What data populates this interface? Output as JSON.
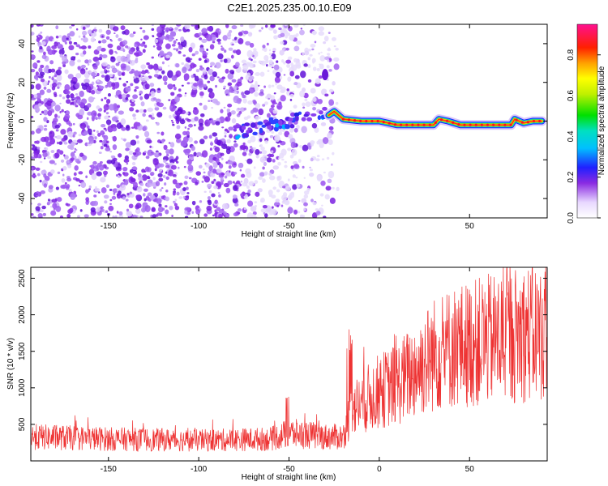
{
  "title": "C2E1.2025.235.00.10.E09",
  "chart_data": [
    {
      "type": "heatmap",
      "xlabel": "Height of straight line (km)",
      "ylabel": "Frequency (Hz)",
      "xlim": [
        -193,
        93
      ],
      "ylim": [
        -50,
        50
      ],
      "xticks": [
        -150,
        -100,
        -50,
        0,
        50
      ],
      "yticks": [
        -40,
        -20,
        0,
        20,
        40
      ],
      "grid": false,
      "colorbar": {
        "label": "Normalized spectral amplitude",
        "ticks": [
          0.0,
          0.2,
          0.4,
          0.6,
          0.8
        ],
        "range": [
          0,
          0.95
        ]
      },
      "signal_track": {
        "description_units": "frequency (Hz) vs height (km)",
        "x": [
          -28,
          -25,
          -20,
          -10,
          0,
          10,
          20,
          30,
          33,
          38,
          45,
          55,
          65,
          73,
          75,
          80,
          85,
          90
        ],
        "y": [
          3,
          5,
          1,
          0,
          0,
          -2,
          -2,
          -2,
          1,
          0,
          -2,
          -2,
          -2,
          -2,
          1,
          -1,
          0,
          0
        ]
      },
      "noisy_band": {
        "x_start": -193,
        "x_end": -28
      }
    },
    {
      "type": "line",
      "xlabel": "Height of straight line (km)",
      "ylabel": "SNR (10 * v/v)",
      "xlim": [
        -193,
        93
      ],
      "ylim": [
        0,
        2650
      ],
      "xticks": [
        -150,
        -100,
        -50,
        0,
        50
      ],
      "yticks": [
        500,
        1000,
        1500,
        2000,
        2500
      ],
      "grid": false,
      "series": [
        {
          "color": "#ee3333",
          "trend_x": [
            -193,
            -150,
            -100,
            -60,
            -50,
            -30,
            -20,
            -15,
            -10,
            0,
            10,
            20,
            30,
            40,
            50,
            60,
            70,
            80,
            93
          ],
          "trend_y": [
            330,
            300,
            280,
            300,
            380,
            330,
            330,
            700,
            800,
            950,
            1050,
            1250,
            1450,
            1550,
            1600,
            1650,
            1700,
            1750,
            1750
          ]
        }
      ]
    }
  ],
  "colors": {
    "snr_line": "#ee3333",
    "background": "#ffffff",
    "axis": "#000000"
  }
}
